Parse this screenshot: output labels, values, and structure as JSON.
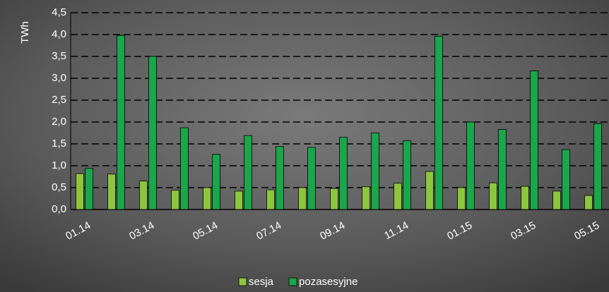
{
  "chart_data": {
    "type": "bar",
    "y_label": "TWh",
    "categories": [
      "01.14",
      null,
      "03.14",
      null,
      "05.14",
      null,
      "07.14",
      null,
      "09.14",
      null,
      "11.14",
      null,
      "01.15",
      null,
      "03.15",
      null,
      "05.15"
    ],
    "series": [
      {
        "name": "sesja",
        "color": "#8cc63e",
        "values": [
          0.82,
          0.81,
          0.65,
          0.44,
          0.5,
          0.42,
          0.45,
          0.5,
          0.48,
          0.52,
          0.6,
          0.87,
          0.5,
          0.61,
          0.53,
          0.42,
          0.32
        ]
      },
      {
        "name": "pozasesyjne",
        "color": "#1aa64a",
        "values": [
          0.94,
          3.98,
          3.5,
          1.87,
          1.26,
          1.69,
          1.44,
          1.42,
          1.65,
          1.75,
          1.57,
          3.96,
          2.0,
          1.83,
          3.17,
          1.37,
          1.96
        ]
      }
    ],
    "ylim": [
      0,
      4.5
    ],
    "yticks": [
      {
        "value": 0,
        "label": "0,0"
      },
      {
        "value": 0.5,
        "label": "0,5"
      },
      {
        "value": 1,
        "label": "1,0"
      },
      {
        "value": 1.5,
        "label": "1,5"
      },
      {
        "value": 2,
        "label": "2,0"
      },
      {
        "value": 2.5,
        "label": "2,5"
      },
      {
        "value": 3,
        "label": "3,0"
      },
      {
        "value": 3.5,
        "label": "3,5"
      },
      {
        "value": 4,
        "label": "4,0"
      },
      {
        "value": 4.5,
        "label": "4,5"
      }
    ],
    "grid": true,
    "legend": "bottom"
  }
}
